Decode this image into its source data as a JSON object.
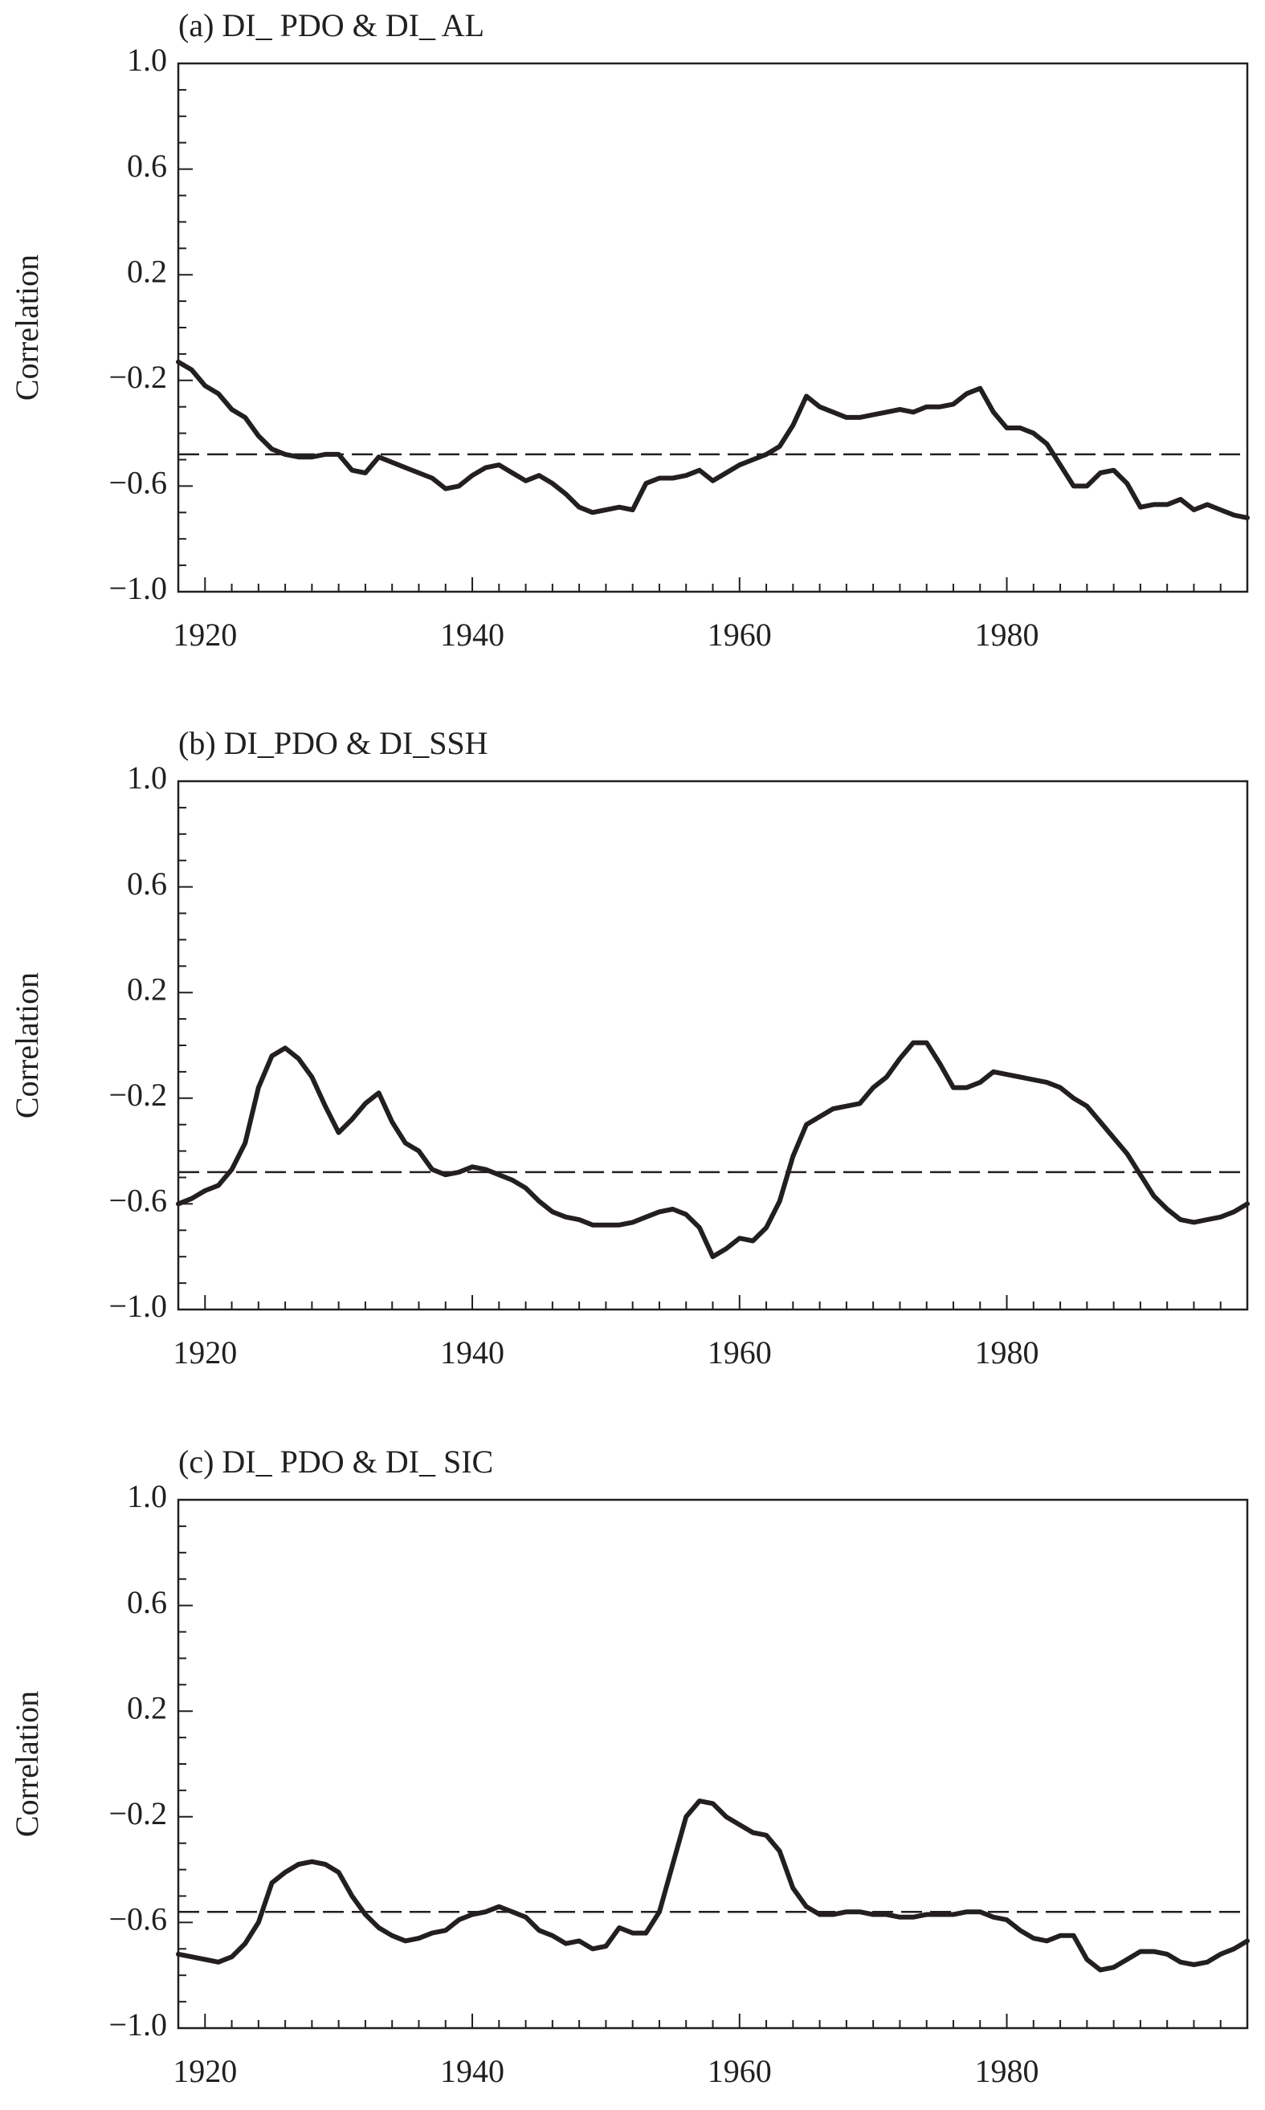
{
  "colors": {
    "line": "#231f20",
    "axis": "#231f20",
    "background": "#ffffff"
  },
  "chart_data": [
    {
      "type": "line",
      "title": "(a) DI_ PDO & DI_ AL",
      "xlabel": "",
      "ylabel": "Correlation",
      "xlim": [
        1918,
        1998
      ],
      "ylim": [
        -1.0,
        1.0
      ],
      "yticks": [
        "1.0",
        "0.6",
        "0.2",
        "−0.2",
        "−0.6",
        "−1.0"
      ],
      "xticks": [
        "1920",
        "1940",
        "1960",
        "1980"
      ],
      "grid": false,
      "significance_level": -0.48,
      "series": [
        {
          "x": [
            1918,
            1919,
            1920,
            1921,
            1922,
            1923,
            1924,
            1925,
            1926,
            1927,
            1928,
            1929,
            1930,
            1931,
            1932,
            1933,
            1934,
            1935,
            1936,
            1937,
            1938,
            1939,
            1940,
            1941,
            1942,
            1943,
            1944,
            1945,
            1946,
            1947,
            1948,
            1949,
            1950,
            1951,
            1952,
            1953,
            1954,
            1955,
            1956,
            1957,
            1958,
            1959,
            1960,
            1961,
            1962,
            1963,
            1964,
            1965,
            1966,
            1967,
            1968,
            1969,
            1970,
            1971,
            1972,
            1973,
            1974,
            1975,
            1976,
            1977,
            1978,
            1979,
            1980,
            1981,
            1982,
            1983,
            1984,
            1985,
            1986,
            1987,
            1988,
            1989,
            1990,
            1991,
            1992,
            1993,
            1994,
            1995,
            1996,
            1997,
            1998
          ],
          "y": [
            -0.13,
            -0.16,
            -0.22,
            -0.25,
            -0.31,
            -0.34,
            -0.41,
            -0.46,
            -0.48,
            -0.49,
            -0.49,
            -0.48,
            -0.48,
            -0.54,
            -0.55,
            -0.49,
            -0.51,
            -0.53,
            -0.55,
            -0.57,
            -0.61,
            -0.6,
            -0.56,
            -0.53,
            -0.52,
            -0.55,
            -0.58,
            -0.56,
            -0.59,
            -0.63,
            -0.68,
            -0.7,
            -0.69,
            -0.68,
            -0.69,
            -0.59,
            -0.57,
            -0.57,
            -0.56,
            -0.54,
            -0.58,
            -0.55,
            -0.52,
            -0.5,
            -0.48,
            -0.45,
            -0.37,
            -0.26,
            -0.3,
            -0.32,
            -0.34,
            -0.34,
            -0.33,
            -0.32,
            -0.31,
            -0.32,
            -0.3,
            -0.3,
            -0.29,
            -0.25,
            -0.23,
            -0.32,
            -0.38,
            -0.38,
            -0.4,
            -0.44,
            -0.52,
            -0.6,
            -0.6,
            -0.55,
            -0.54,
            -0.59,
            -0.68,
            -0.67,
            -0.67,
            -0.65,
            -0.69,
            -0.67,
            -0.69,
            -0.71,
            -0.72
          ]
        }
      ]
    },
    {
      "type": "line",
      "title": "(b) DI_PDO & DI_SSH",
      "xlabel": "",
      "ylabel": "Correlation",
      "xlim": [
        1918,
        1998
      ],
      "ylim": [
        -1.0,
        1.0
      ],
      "yticks": [
        "1.0",
        "0.6",
        "0.2",
        "−0.2",
        "−0.6",
        "−1.0"
      ],
      "xticks": [
        "1920",
        "1940",
        "1960",
        "1980"
      ],
      "grid": false,
      "significance_level": -0.48,
      "series": [
        {
          "x": [
            1918,
            1919,
            1920,
            1921,
            1922,
            1923,
            1924,
            1925,
            1926,
            1927,
            1928,
            1929,
            1930,
            1931,
            1932,
            1933,
            1934,
            1935,
            1936,
            1937,
            1938,
            1939,
            1940,
            1941,
            1942,
            1943,
            1944,
            1945,
            1946,
            1947,
            1948,
            1949,
            1950,
            1951,
            1952,
            1953,
            1954,
            1955,
            1956,
            1957,
            1958,
            1959,
            1960,
            1961,
            1962,
            1963,
            1964,
            1965,
            1966,
            1967,
            1968,
            1969,
            1970,
            1971,
            1972,
            1973,
            1974,
            1975,
            1976,
            1977,
            1978,
            1979,
            1980,
            1981,
            1982,
            1983,
            1984,
            1985,
            1986,
            1987,
            1988,
            1989,
            1990,
            1991,
            1992,
            1993,
            1994,
            1995,
            1996,
            1997,
            1998
          ],
          "y": [
            -0.6,
            -0.58,
            -0.55,
            -0.53,
            -0.47,
            -0.37,
            -0.16,
            -0.04,
            -0.01,
            -0.05,
            -0.12,
            -0.23,
            -0.33,
            -0.28,
            -0.22,
            -0.18,
            -0.29,
            -0.37,
            -0.4,
            -0.47,
            -0.49,
            -0.48,
            -0.46,
            -0.47,
            -0.49,
            -0.51,
            -0.54,
            -0.59,
            -0.63,
            -0.65,
            -0.66,
            -0.68,
            -0.68,
            -0.68,
            -0.67,
            -0.65,
            -0.63,
            -0.62,
            -0.64,
            -0.69,
            -0.8,
            -0.77,
            -0.73,
            -0.74,
            -0.69,
            -0.59,
            -0.42,
            -0.3,
            -0.27,
            -0.24,
            -0.23,
            -0.22,
            -0.16,
            -0.12,
            -0.05,
            0.01,
            0.01,
            -0.07,
            -0.16,
            -0.16,
            -0.14,
            -0.1,
            -0.11,
            -0.12,
            -0.13,
            -0.14,
            -0.16,
            -0.2,
            -0.23,
            -0.29,
            -0.35,
            -0.41,
            -0.49,
            -0.57,
            -0.62,
            -0.66,
            -0.67,
            -0.66,
            -0.65,
            -0.63,
            -0.6
          ]
        }
      ]
    },
    {
      "type": "line",
      "title": "(c) DI_ PDO & DI_ SIC",
      "xlabel": "",
      "ylabel": "Correlation",
      "xlim": [
        1918,
        1998
      ],
      "ylim": [
        -1.0,
        1.0
      ],
      "yticks": [
        "1.0",
        "0.6",
        "0.2",
        "−0.2",
        "−0.6",
        "−1.0"
      ],
      "xticks": [
        "1920",
        "1940",
        "1960",
        "1980"
      ],
      "grid": false,
      "significance_level": -0.56,
      "series": [
        {
          "x": [
            1918,
            1919,
            1920,
            1921,
            1922,
            1923,
            1924,
            1925,
            1926,
            1927,
            1928,
            1929,
            1930,
            1931,
            1932,
            1933,
            1934,
            1935,
            1936,
            1937,
            1938,
            1939,
            1940,
            1941,
            1942,
            1943,
            1944,
            1945,
            1946,
            1947,
            1948,
            1949,
            1950,
            1951,
            1952,
            1953,
            1954,
            1955,
            1956,
            1957,
            1958,
            1959,
            1960,
            1961,
            1962,
            1963,
            1964,
            1965,
            1966,
            1967,
            1968,
            1969,
            1970,
            1971,
            1972,
            1973,
            1974,
            1975,
            1976,
            1977,
            1978,
            1979,
            1980,
            1981,
            1982,
            1983,
            1984,
            1985,
            1986,
            1987,
            1988,
            1989,
            1990,
            1991,
            1992,
            1993,
            1994,
            1995,
            1996,
            1997,
            1998
          ],
          "y": [
            -0.72,
            -0.73,
            -0.74,
            -0.75,
            -0.73,
            -0.68,
            -0.6,
            -0.45,
            -0.41,
            -0.38,
            -0.37,
            -0.38,
            -0.41,
            -0.5,
            -0.57,
            -0.62,
            -0.65,
            -0.67,
            -0.66,
            -0.64,
            -0.63,
            -0.59,
            -0.57,
            -0.56,
            -0.54,
            -0.56,
            -0.58,
            -0.63,
            -0.65,
            -0.68,
            -0.67,
            -0.7,
            -0.69,
            -0.62,
            -0.64,
            -0.64,
            -0.56,
            -0.38,
            -0.2,
            -0.14,
            -0.15,
            -0.2,
            -0.23,
            -0.26,
            -0.27,
            -0.33,
            -0.47,
            -0.54,
            -0.57,
            -0.57,
            -0.56,
            -0.56,
            -0.57,
            -0.57,
            -0.58,
            -0.58,
            -0.57,
            -0.57,
            -0.57,
            -0.56,
            -0.56,
            -0.58,
            -0.59,
            -0.63,
            -0.66,
            -0.67,
            -0.65,
            -0.65,
            -0.74,
            -0.78,
            -0.77,
            -0.74,
            -0.71,
            -0.71,
            -0.72,
            -0.75,
            -0.76,
            -0.75,
            -0.72,
            -0.7,
            -0.67
          ]
        }
      ]
    }
  ]
}
